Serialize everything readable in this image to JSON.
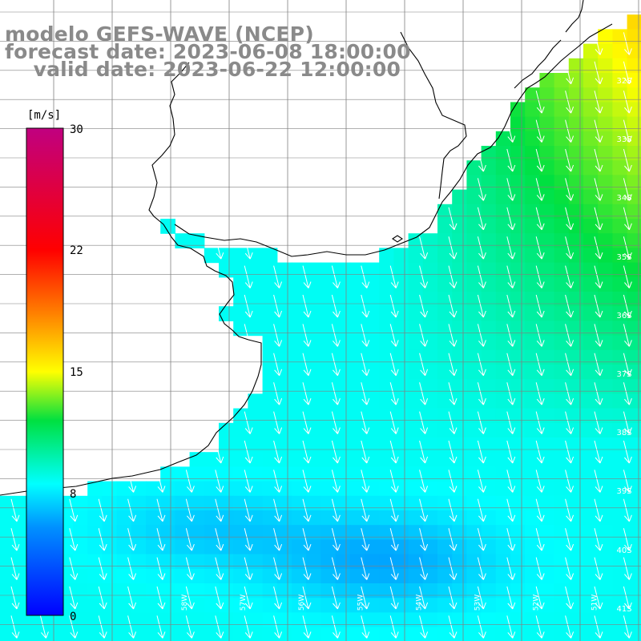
{
  "title": {
    "line1": "modelo GEFS-WAVE (NCEP)",
    "line2": "forecast date: 2023-06-08 18:00:00",
    "line3": "valid date: 2023-06-22 12:00:00"
  },
  "colorbar": {
    "unit": "[m/s]",
    "ticks": [
      "30",
      "22",
      "15",
      "8",
      "0"
    ],
    "stops": [
      "#0000ff",
      "#0090ff",
      "#00ffff",
      "#00ff00",
      "#ffff00",
      "#ff8000",
      "#ff0000",
      "#c00080"
    ]
  },
  "lat_labels": [
    "32S",
    "33S",
    "34S",
    "35S",
    "36S",
    "37S",
    "38S",
    "39S",
    "40S",
    "41S"
  ],
  "lon_labels": [
    "58W",
    "57W",
    "56W",
    "55W",
    "54W",
    "53W",
    "52W",
    "51W",
    "50W"
  ],
  "colors": {
    "land": "#ffffff",
    "coast": "#000000",
    "grid": "#808080",
    "arrow": "#ffffff",
    "text": "#8a8a8a"
  }
}
